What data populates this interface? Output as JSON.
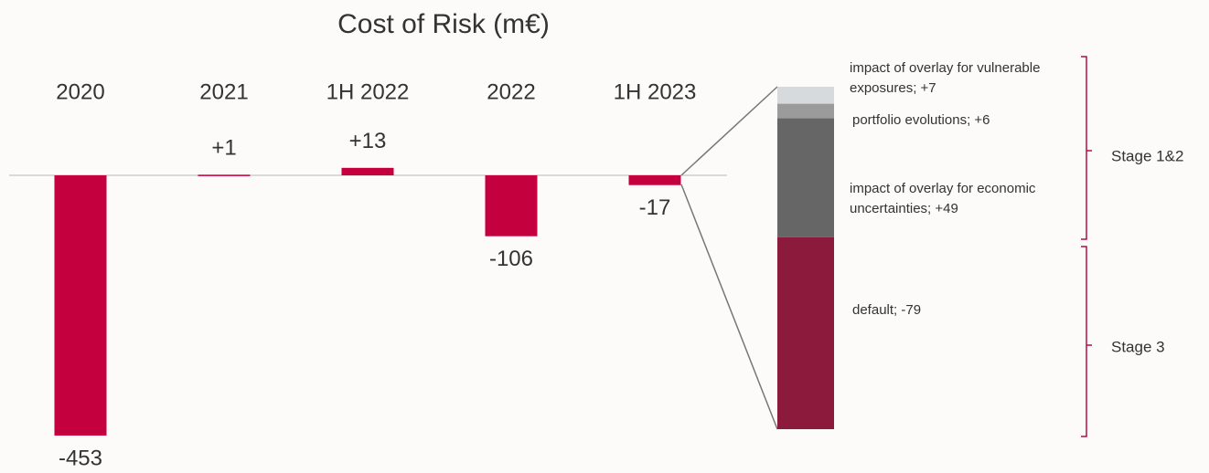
{
  "chart_data": [
    {
      "type": "bar",
      "title": "Cost of Risk (m€)",
      "categories": [
        "2020",
        "2021",
        "1H 2022",
        "2022",
        "1H 2023"
      ],
      "values": [
        -453,
        1,
        13,
        -106,
        -17
      ],
      "value_labels": [
        "-453",
        "+1",
        "+13",
        "-106",
        "-17"
      ],
      "color": "#c4003f"
    },
    {
      "type": "breakdown",
      "labels": [
        "impact of overlay for vulnerable exposures; +7",
        "portfolio evolutions; +6",
        "impact of overlay for economic uncertainties; +49",
        "default; -79"
      ],
      "values": [
        7,
        6,
        49,
        -79
      ],
      "colors": [
        "#d6dadc",
        "#9b9b9b",
        "#666666",
        "#8b1a3c"
      ],
      "groups": [
        "Stage 1&2",
        "Stage 3"
      ]
    }
  ]
}
